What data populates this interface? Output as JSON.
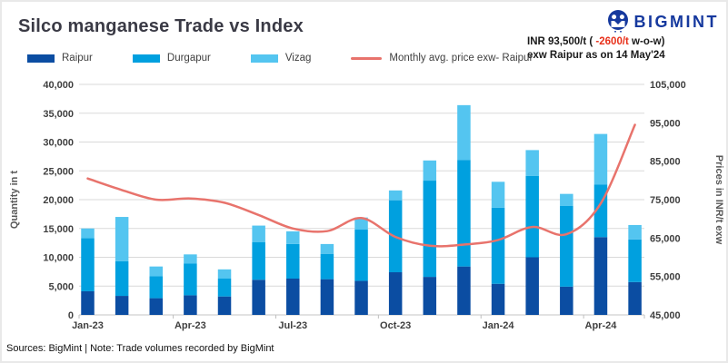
{
  "header": {
    "title": "Silco manganese Trade vs Index",
    "logo": {
      "text": "BIGMINT",
      "color": "#16399E"
    },
    "price_note": {
      "line1_prefix": "INR 93,500/t ( ",
      "line1_change": "-2600/t",
      "line1_suffix": " w-o-w)",
      "line2": "exw Raipur as on 14 May'24",
      "change_color": "#e8301a"
    }
  },
  "chart_data": {
    "type": "stacked-bar+line",
    "title": "Silco manganese Trade vs Index",
    "categories": [
      "Jan-23",
      "Feb-23",
      "Mar-23",
      "Apr-23",
      "May-23",
      "Jun-23",
      "Jul-23",
      "Aug-23",
      "Sep-23",
      "Oct-23",
      "Nov-23",
      "Dec-23",
      "Jan-24",
      "Feb-24",
      "Mar-24",
      "Apr-24",
      "May-24"
    ],
    "series": [
      {
        "name": "Raipur",
        "type": "bar",
        "axis": "left",
        "color": "#0b4da2",
        "values": [
          4100,
          3300,
          2900,
          3400,
          3200,
          6100,
          6300,
          6200,
          5900,
          7400,
          6600,
          8400,
          5400,
          10000,
          4900,
          13500,
          5700
        ]
      },
      {
        "name": "Durgapur",
        "type": "bar",
        "axis": "left",
        "color": "#00a0df",
        "values": [
          9200,
          6000,
          3800,
          5500,
          3100,
          6500,
          6000,
          4400,
          8900,
          12500,
          16700,
          18500,
          13200,
          14100,
          14000,
          9100,
          7400
        ]
      },
      {
        "name": "Vizag",
        "type": "bar",
        "axis": "left",
        "color": "#54c5f0",
        "values": [
          1700,
          7700,
          1700,
          1600,
          1600,
          2900,
          2200,
          1700,
          2100,
          1700,
          3500,
          9500,
          4500,
          4500,
          2100,
          8800,
          2500
        ]
      },
      {
        "name": "Monthly avg. price exw- Raipur",
        "type": "line",
        "axis": "right",
        "color": "#e8736c",
        "values": [
          80500,
          77500,
          75000,
          75300,
          74200,
          71000,
          67500,
          66800,
          70200,
          65300,
          63000,
          63300,
          64500,
          67900,
          66000,
          74000,
          94500
        ]
      }
    ],
    "left_axis": {
      "label": "Quantity in t",
      "min": 0,
      "max": 40000,
      "step": 5000
    },
    "right_axis": {
      "label": "Prices in INR/t exw",
      "min": 45000,
      "max": 105000,
      "step": 10000
    },
    "x_label_every": 3,
    "grid": true,
    "legend_position": "top-left"
  },
  "footer": {
    "text": "Sources: BigMint | Note: Trade volumes recorded by BigMint"
  }
}
